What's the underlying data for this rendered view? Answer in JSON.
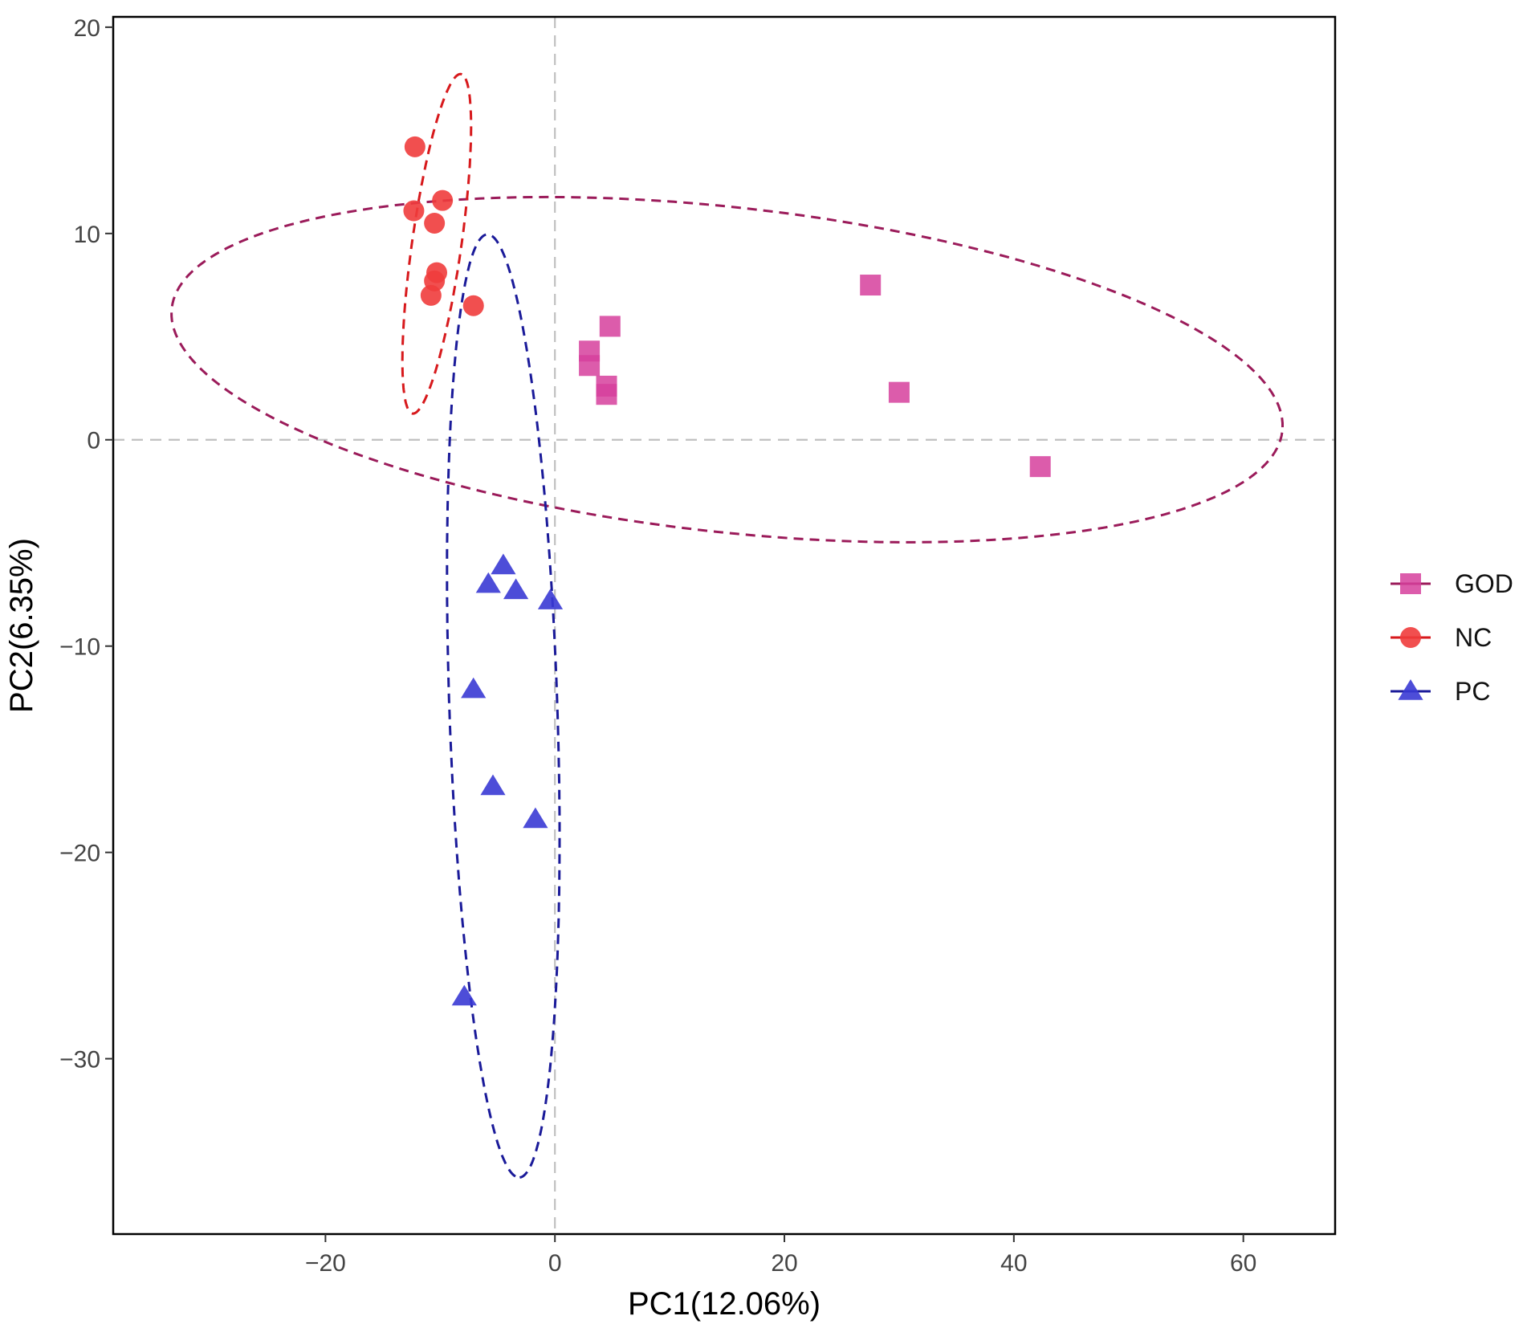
{
  "chart_data": {
    "type": "scatter",
    "title": "",
    "xlabel": "PC1(12.06%)",
    "ylabel": "PC2(6.35%)",
    "xlim": [
      -38.5,
      68
    ],
    "ylim": [
      -38.5,
      20.5
    ],
    "xticks": [
      -20,
      0,
      20,
      40,
      60
    ],
    "yticks": [
      20,
      10,
      0,
      -10,
      -20,
      -30
    ],
    "xtick_labels": [
      "−20",
      "0",
      "20",
      "40",
      "60"
    ],
    "ytick_labels": [
      "20",
      "10",
      "0",
      "−10",
      "−20",
      "−30"
    ],
    "grid": false,
    "reference_lines": {
      "x": 0,
      "y": 0
    },
    "legend_position": "right",
    "series": [
      {
        "name": "GOD",
        "marker": "square",
        "color": "#d6409c",
        "points": [
          [
            27.5,
            7.5
          ],
          [
            30,
            2.3
          ],
          [
            42.3,
            -1.3
          ],
          [
            4.8,
            5.5
          ],
          [
            3,
            4.3
          ],
          [
            3,
            3.6
          ],
          [
            4.5,
            2.6
          ],
          [
            4.5,
            2.2
          ]
        ],
        "ellipse": {
          "center": [
            15,
            3.4
          ],
          "semi_axes": [
            48.5,
            7.9
          ],
          "angle_deg": -3.3,
          "color": "#9b1b5a"
        }
      },
      {
        "name": "NC",
        "marker": "circle",
        "color": "#f03c3c",
        "points": [
          [
            -12.2,
            14.2
          ],
          [
            -12.3,
            11.1
          ],
          [
            -9.8,
            11.6
          ],
          [
            -10.5,
            10.5
          ],
          [
            -10.3,
            8.1
          ],
          [
            -10.5,
            7.7
          ],
          [
            -10.8,
            7.0
          ],
          [
            -7.1,
            6.5
          ]
        ],
        "ellipse": {
          "center": [
            -10.3,
            9.5
          ],
          "semi_axes": [
            8.5,
            2.1
          ],
          "angle_deg": 75,
          "color": "#d7191c"
        }
      },
      {
        "name": "PC",
        "marker": "triangle",
        "color": "#3a3ad4",
        "points": [
          [
            -4.5,
            -6.1
          ],
          [
            -5.8,
            -7.0
          ],
          [
            -3.4,
            -7.3
          ],
          [
            -0.4,
            -7.8
          ],
          [
            -7.1,
            -12.1
          ],
          [
            -5.4,
            -16.8
          ],
          [
            -1.7,
            -18.4
          ],
          [
            -7.9,
            -27.0
          ]
        ],
        "ellipse": {
          "center": [
            -4.5,
            -12.9
          ],
          "semi_axes": [
            22.9,
            4.7
          ],
          "angle_deg": -86.4,
          "color": "#1a1a99"
        }
      }
    ]
  }
}
